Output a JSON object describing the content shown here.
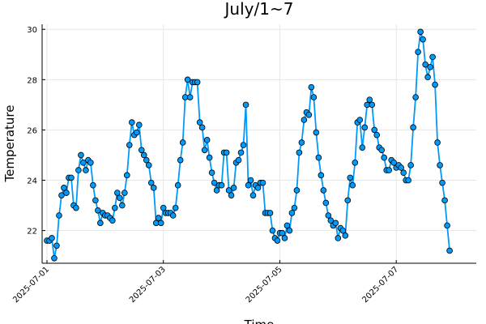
{
  "chart_data": {
    "type": "line",
    "title": "July/1~7",
    "xlabel": "Time",
    "ylabel": "Temperature",
    "xlim_hours": [
      -2,
      177
    ],
    "x_unit": "hours from 2025-07-01 00:00",
    "ylim": [
      20.7,
      30.2
    ],
    "x_ticks": [
      {
        "hour": 0,
        "label": "2025-07-01"
      },
      {
        "hour": 48,
        "label": "2025-07-03"
      },
      {
        "hour": 96,
        "label": "2025-07-05"
      },
      {
        "hour": 144,
        "label": "2025-07-07"
      }
    ],
    "y_ticks": [
      22,
      24,
      26,
      28,
      30
    ],
    "grid": true,
    "legend": "none",
    "color": "#009AFA",
    "marker": "circle",
    "series": [
      {
        "values": [
          21.6,
          21.6,
          21.7,
          20.9,
          21.4,
          22.6,
          23.4,
          23.7,
          23.5,
          24.1,
          24.1,
          23.0,
          22.9,
          24.4,
          25.0,
          24.7,
          24.4,
          24.8,
          24.7,
          23.8,
          23.2,
          22.8,
          22.3,
          22.7,
          22.6,
          22.6,
          22.5,
          22.4,
          22.9,
          23.5,
          23.3,
          23.0,
          23.5,
          24.2,
          25.4,
          26.3,
          25.8,
          25.9,
          26.2,
          25.2,
          25.0,
          24.8,
          24.6,
          23.9,
          23.7,
          22.3,
          22.5,
          22.3,
          22.9,
          22.7,
          22.7,
          22.7,
          22.6,
          22.9,
          23.8,
          24.8,
          25.5,
          27.3,
          28.0,
          27.3,
          27.9,
          27.9,
          27.9,
          26.3,
          26.1,
          25.2,
          25.6,
          24.9,
          24.3,
          23.9,
          23.6,
          23.8,
          23.8,
          25.1,
          25.1,
          23.6,
          23.4,
          23.7,
          24.7,
          24.8,
          25.1,
          25.4,
          27.0,
          23.8,
          24.0,
          23.4,
          23.8,
          23.7,
          23.9,
          23.9,
          22.7,
          22.7,
          22.7,
          22.0,
          21.7,
          21.6,
          21.9,
          21.9,
          21.7,
          22.2,
          22.0,
          22.7,
          22.9,
          23.6,
          25.1,
          25.5,
          26.4,
          26.7,
          26.6,
          27.7,
          27.3,
          25.9,
          24.9,
          24.2,
          23.6,
          23.1,
          22.6,
          22.4,
          22.2,
          22.3,
          21.7,
          22.1,
          22.0,
          21.8,
          23.2,
          24.1,
          23.8,
          24.7,
          26.3,
          26.4,
          25.3,
          26.1,
          27.0,
          27.2,
          27.0,
          26.0,
          25.8,
          25.3,
          25.2,
          24.9,
          24.4,
          24.4,
          24.8,
          24.7,
          24.5,
          24.6,
          24.5,
          24.3,
          24.0,
          24.0,
          24.6,
          26.1,
          27.3,
          29.1,
          29.9,
          29.6,
          28.6,
          28.1,
          28.5,
          28.9,
          27.8,
          25.5,
          24.6,
          23.9,
          23.2,
          22.2,
          21.2
        ]
      }
    ]
  }
}
